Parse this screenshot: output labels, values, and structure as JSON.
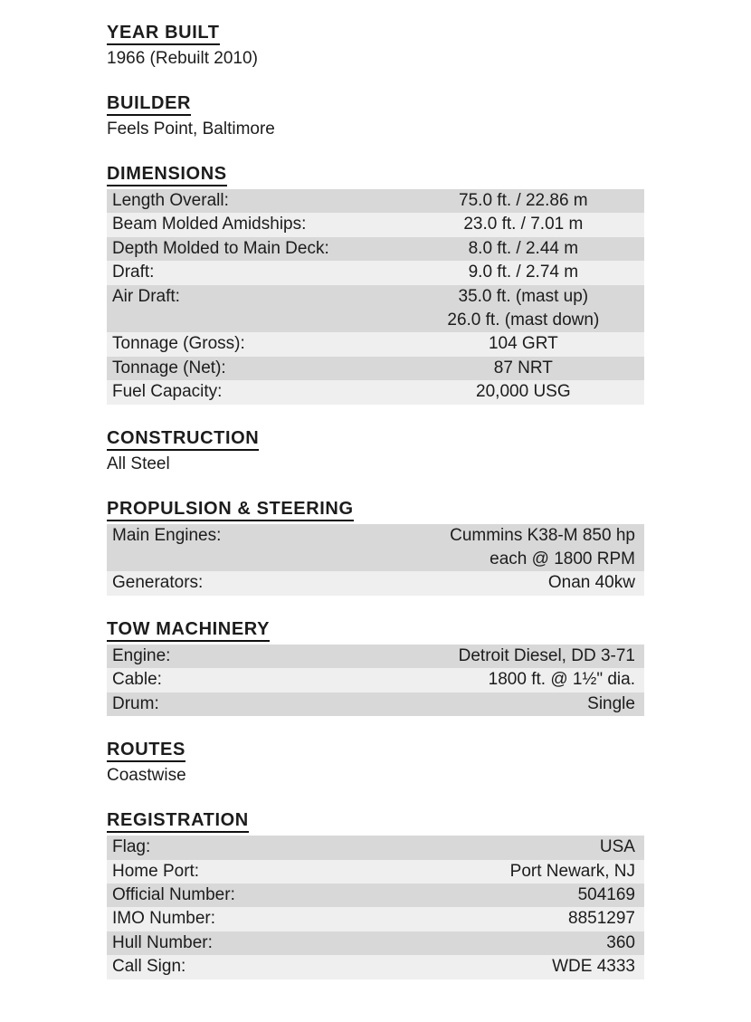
{
  "document": {
    "title": "Vessel Specification Sheet",
    "colors": {
      "row_dark": "#d8d8d8",
      "row_light": "#efefef",
      "text": "#1c1c1c",
      "heading_rule": "#111111"
    },
    "sections": [
      {
        "id": "year-built",
        "heading": "YEAR BUILT",
        "text": "1966 (Rebuilt 2010)"
      },
      {
        "id": "builder",
        "heading": "BUILDER",
        "text": "Feels Point, Baltimore"
      },
      {
        "id": "dimensions",
        "heading": "DIMENSIONS",
        "table": {
          "value_align": "center",
          "rows": [
            {
              "label": "Length Overall:",
              "value": [
                "75.0 ft. / 22.86 m"
              ]
            },
            {
              "label": "Beam Molded Amidships:",
              "value": [
                "23.0 ft. / 7.01 m"
              ]
            },
            {
              "label": "Depth Molded to Main Deck:",
              "value": [
                "8.0 ft. / 2.44 m"
              ]
            },
            {
              "label": "Draft:",
              "value": [
                "9.0 ft. / 2.74 m"
              ]
            },
            {
              "label": "Air Draft:",
              "value": [
                "35.0 ft. (mast up)",
                "26.0 ft. (mast down)"
              ]
            },
            {
              "label": "Tonnage (Gross):",
              "value": [
                "104 GRT"
              ]
            },
            {
              "label": "Tonnage (Net):",
              "value": [
                "87 NRT"
              ]
            },
            {
              "label": "Fuel Capacity:",
              "value": [
                "20,000 USG"
              ]
            }
          ]
        }
      },
      {
        "id": "construction",
        "heading": "CONSTRUCTION",
        "text": "All Steel"
      },
      {
        "id": "propulsion-steering",
        "heading": "PROPULSION & STEERING",
        "table": {
          "value_align": "right",
          "rows": [
            {
              "label": "Main Engines:",
              "value": [
                "Cummins K38-M 850 hp",
                "each @ 1800 RPM"
              ]
            },
            {
              "label": "Generators:",
              "value": [
                "Onan 40kw"
              ]
            }
          ]
        }
      },
      {
        "id": "tow-machinery",
        "heading": "TOW MACHINERY",
        "table": {
          "value_align": "right",
          "rows": [
            {
              "label": "Engine:",
              "value": [
                "Detroit Diesel, DD 3-71"
              ]
            },
            {
              "label": "Cable:",
              "value": [
                "1800 ft. @ 1½\" dia."
              ]
            },
            {
              "label": "Drum:",
              "value": [
                "Single"
              ]
            }
          ]
        }
      },
      {
        "id": "routes",
        "heading": "ROUTES",
        "text": "Coastwise"
      },
      {
        "id": "registration",
        "heading": "REGISTRATION",
        "table": {
          "value_align": "right",
          "rows": [
            {
              "label": "Flag:",
              "value": [
                "USA"
              ]
            },
            {
              "label": "Home Port:",
              "value": [
                "Port Newark, NJ"
              ]
            },
            {
              "label": "Official Number:",
              "value": [
                "504169"
              ]
            },
            {
              "label": "IMO Number:",
              "value": [
                "8851297"
              ]
            },
            {
              "label": "Hull Number:",
              "value": [
                "360"
              ]
            },
            {
              "label": "Call Sign:",
              "value": [
                "WDE 4333"
              ]
            }
          ]
        }
      }
    ]
  }
}
